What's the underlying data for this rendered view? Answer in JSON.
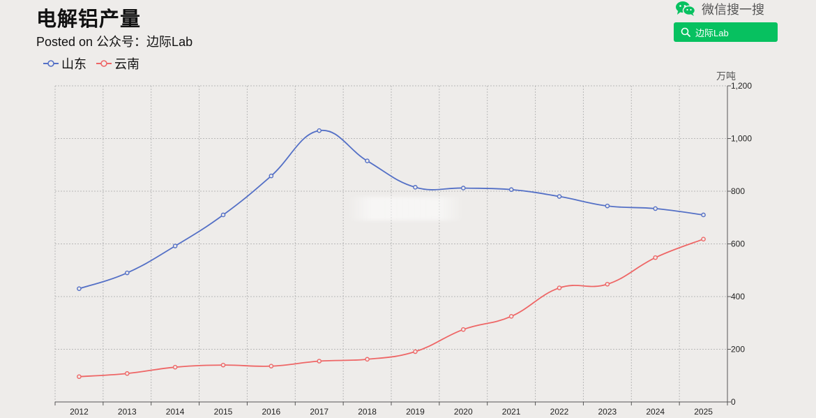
{
  "header": {
    "title": "电解铝产量",
    "subtitle": "Posted on 公众号：边际Lab"
  },
  "wechat": {
    "brand_label": "微信搜一搜",
    "search_text": "边际Lab",
    "brand_icon": "wechat-icon",
    "search_icon": "search-icon",
    "accent": "#07c160"
  },
  "chart_data": {
    "type": "line",
    "title": "电解铝产量",
    "subtitle": "Posted on 公众号：边际Lab",
    "xlabel": "",
    "ylabel": "万吨",
    "categories": [
      "2012",
      "2013",
      "2014",
      "2015",
      "2016",
      "2017",
      "2018",
      "2019",
      "2020",
      "2021",
      "2022",
      "2023",
      "2024",
      "2025"
    ],
    "series": [
      {
        "name": "山东",
        "color": "#5470c6",
        "values": [
          430,
          490,
          592,
          710,
          858,
          1030,
          915,
          815,
          812,
          806,
          780,
          744,
          734,
          710
        ]
      },
      {
        "name": "云南",
        "color": "#ee6666",
        "values": [
          96,
          108,
          132,
          140,
          136,
          155,
          162,
          191,
          275,
          325,
          433,
          447,
          548,
          618
        ]
      }
    ],
    "ylim": [
      0,
      1200
    ],
    "yticks": [
      0,
      200,
      400,
      600,
      800,
      1000,
      1200
    ],
    "ytick_labels": [
      "0",
      "200",
      "400",
      "600",
      "800",
      "1,000",
      "1,200"
    ],
    "y_axis_position": "right",
    "grid": true,
    "legend_position": "top-left",
    "smooth": true
  }
}
